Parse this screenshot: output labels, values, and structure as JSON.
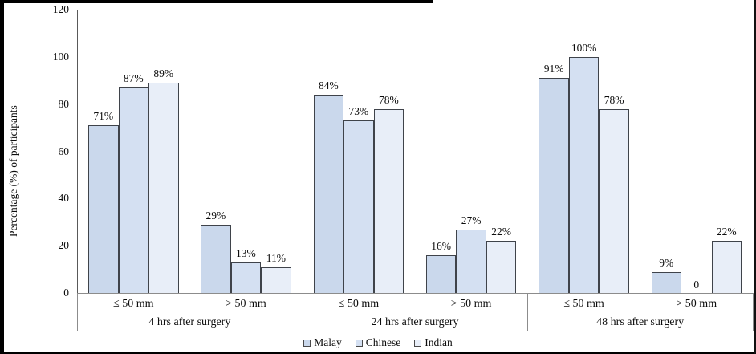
{
  "chart_data": {
    "type": "bar",
    "title": "",
    "ylabel": "Percentage (%) of participants",
    "xlabel": "",
    "ylim": [
      0,
      120
    ],
    "yticks": [
      0,
      20,
      40,
      60,
      80,
      100,
      120
    ],
    "grid": false,
    "legend_position": "bottom-center",
    "group_labels": [
      "4 hrs after surgery",
      "24 hrs after surgery",
      "48 hrs after surgery"
    ],
    "subcategory_labels": [
      "≤ 50 mm",
      "> 50 mm"
    ],
    "series": [
      {
        "name": "Malay",
        "color": "#cad8ec",
        "values": [
          [
            71,
            29
          ],
          [
            84,
            16
          ],
          [
            91,
            9
          ]
        ],
        "labels": [
          [
            "71%",
            "29%"
          ],
          [
            "84%",
            "16%"
          ],
          [
            "91%",
            "9%"
          ]
        ]
      },
      {
        "name": "Chinese",
        "color": "#d4e0f2",
        "values": [
          [
            87,
            13
          ],
          [
            73,
            27
          ],
          [
            100,
            0
          ]
        ],
        "labels": [
          [
            "87%",
            "13%"
          ],
          [
            "73%",
            "27%"
          ],
          [
            "100%",
            "0"
          ]
        ]
      },
      {
        "name": "Indian",
        "color": "#e8eef8",
        "values": [
          [
            89,
            11
          ],
          [
            78,
            22
          ],
          [
            78,
            22
          ]
        ],
        "labels": [
          [
            "89%",
            "11%"
          ],
          [
            "78%",
            "22%"
          ],
          [
            "78%",
            "22%"
          ]
        ]
      }
    ],
    "colors": {
      "bar_border": "#3f434a",
      "axis_line": "#595959",
      "separator_line": "#8c8c8c",
      "text": "#0d0d0d"
    }
  }
}
